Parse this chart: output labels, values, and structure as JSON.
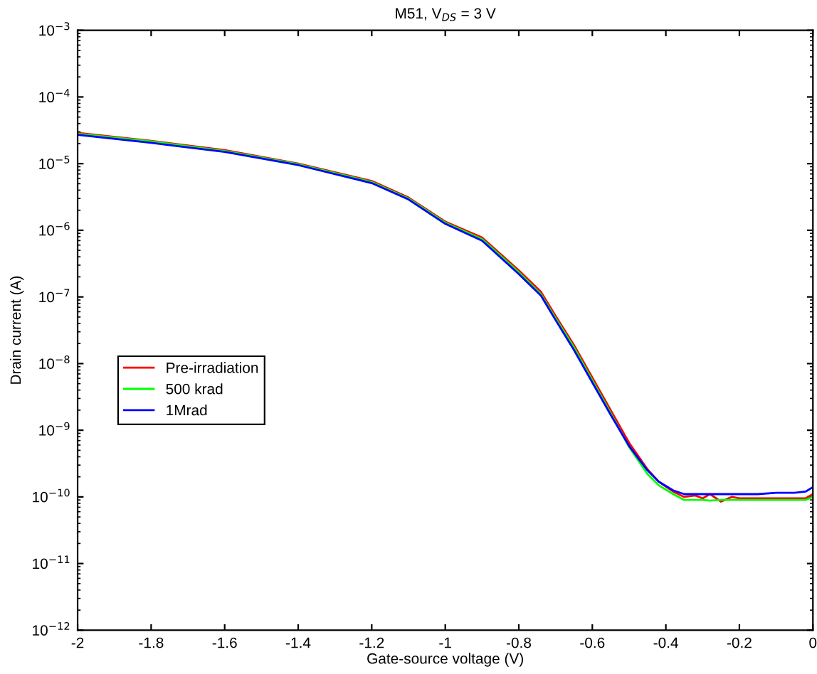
{
  "chart_data": {
    "type": "line",
    "title": "M51, V$_{DS}$ = 3 V",
    "xlabel": "Gate-source voltage (V)",
    "ylabel": "Drain current (A)",
    "x": [
      -2,
      -1.8,
      -1.6,
      -1.4,
      -1.2,
      -1.1,
      -1.0,
      -0.9,
      -0.8,
      -0.74,
      -0.7,
      -0.65,
      -0.6,
      -0.55,
      -0.5,
      -0.45,
      -0.42,
      -0.38,
      -0.35,
      -0.32,
      -0.3,
      -0.28,
      -0.25,
      -0.22,
      -0.2,
      -0.15,
      -0.1,
      -0.05,
      -0.02,
      0
    ],
    "series": [
      {
        "name": "Pre-irradiation",
        "color": "#ff0000",
        "values": [
          2.9e-05,
          2.2e-05,
          1.6e-05,
          1e-05,
          5.5e-06,
          3.1e-06,
          1.35e-06,
          7.8e-07,
          2.5e-07,
          1.2e-07,
          5.2e-08,
          1.9e-08,
          6.2e-09,
          2e-09,
          6.5e-10,
          2.6e-10,
          1.7e-10,
          1.2e-10,
          1e-10,
          1.05e-10,
          9.5e-11,
          1.1e-10,
          8.5e-11,
          1e-10,
          9.5e-11,
          9.5e-11,
          9.5e-11,
          9.5e-11,
          9.5e-11,
          1.1e-10
        ]
      },
      {
        "name": "500 krad",
        "color": "#00ff00",
        "values": [
          2.8e-05,
          2.15e-05,
          1.55e-05,
          9.8e-06,
          5.3e-06,
          3e-06,
          1.3e-06,
          7.4e-07,
          2.35e-07,
          1.1e-07,
          4.8e-08,
          1.75e-08,
          5.6e-09,
          1.8e-09,
          5.6e-10,
          2.2e-10,
          1.5e-10,
          1.1e-10,
          9e-11,
          9e-11,
          9e-11,
          8.8e-11,
          9e-11,
          9e-11,
          9e-11,
          9e-11,
          9e-11,
          9e-11,
          9e-11,
          1e-10
        ]
      },
      {
        "name": "1Mrad",
        "color": "#0000ff",
        "values": [
          2.7e-05,
          2.05e-05,
          1.5e-05,
          9.5e-06,
          5.1e-06,
          2.9e-06,
          1.25e-06,
          7e-07,
          2.2e-07,
          1.05e-07,
          4.5e-08,
          1.6e-08,
          5.2e-09,
          1.7e-09,
          5.8e-10,
          2.5e-10,
          1.7e-10,
          1.25e-10,
          1.1e-10,
          1.1e-10,
          1.1e-10,
          1.1e-10,
          1.1e-10,
          1.1e-10,
          1.1e-10,
          1.1e-10,
          1.15e-10,
          1.15e-10,
          1.2e-10,
          1.4e-10
        ]
      }
    ],
    "log": "y",
    "xlim": [
      -2,
      0
    ],
    "ylim": [
      1e-12,
      0.001
    ],
    "xticks": [
      -2,
      -1.8,
      -1.6,
      -1.4,
      -1.2,
      -1,
      -0.8,
      -0.6,
      -0.4,
      -0.2,
      0
    ],
    "yticks": [
      {
        "value": 1e-12,
        "label": "10$^{−12}$"
      },
      {
        "value": 1e-11,
        "label": "10$^{−11}$"
      },
      {
        "value": 1e-10,
        "label": "10$^{−10}$"
      },
      {
        "value": 1e-09,
        "label": "10$^{−9}$"
      },
      {
        "value": 1e-08,
        "label": "10$^{−8}$"
      },
      {
        "value": 1e-07,
        "label": "10$^{−7}$"
      },
      {
        "value": 1e-06,
        "label": "10$^{−6}$"
      },
      {
        "value": 1e-05,
        "label": "10$^{−5}$"
      },
      {
        "value": 0.0001,
        "label": "10$^{−4}$"
      },
      {
        "value": 0.001,
        "label": "10$^{−3}$"
      }
    ],
    "legend": "left",
    "grid": false,
    "marker": "none",
    "line_style": "solid"
  }
}
